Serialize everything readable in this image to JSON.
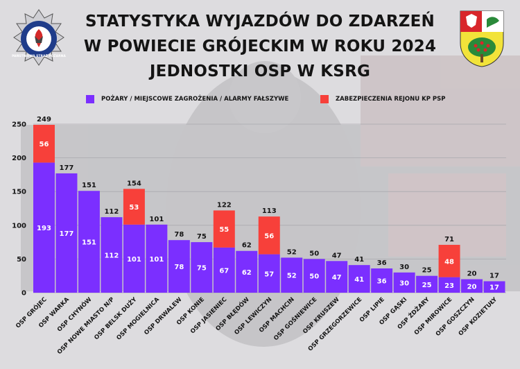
{
  "title": {
    "line1": "STATYSTYKA WYJAZDÓW DO ZDARZEŃ",
    "line2": "W POWIECIE GRÓJECKIM W ROKU 2024",
    "line3": "JEDNOSTKI OSP W KSRG"
  },
  "logos": {
    "left": {
      "icon": "fire-service-emblem-icon",
      "text": "PAŃSTWOWA STRAŻ POŻARNA"
    },
    "right": {
      "icon": "county-coat-of-arms-icon"
    }
  },
  "colors": {
    "primary": "#7b2fff",
    "secondary": "#f7403a",
    "text": "#141414",
    "grid": "#a9a9ae"
  },
  "chart_data": {
    "type": "bar",
    "stacked": true,
    "categories": [
      "OSP GRÓJEC",
      "OSP WARKA",
      "OSP CHYNÓW",
      "OSP NOWE MIASTO N/P",
      "OSP BELSK DUŻY",
      "OSP MOGIELNICA",
      "OSP DRWALEW",
      "OSP KONIE",
      "OSP JASIENIEC",
      "OSP BŁĘDÓW",
      "OSP LEWICZYN",
      "OSP MACHCIN",
      "OSP GOŚNIEWICE",
      "OSP KRUSZEW",
      "OSP GRZEGORZEWICE",
      "OSP LIPIE",
      "OSP GĄSKI",
      "OSP ŻDŻARY",
      "OSP MIROWICE",
      "OSP GOSZCZYN",
      "OSP KOZIETUŁY"
    ],
    "series": [
      {
        "name": "POŻARY / MIEJSCOWE ZAGROŻENIA / ALARMY FAŁSZYWE",
        "color": "#7b2fff",
        "values": [
          193,
          177,
          151,
          112,
          101,
          101,
          78,
          75,
          67,
          62,
          57,
          52,
          50,
          47,
          41,
          36,
          30,
          25,
          23,
          20,
          17
        ]
      },
      {
        "name": "ZABEZPIECZENIA REJONU KP PSP",
        "color": "#f7403a",
        "values": [
          56,
          0,
          0,
          0,
          53,
          0,
          0,
          0,
          55,
          0,
          56,
          0,
          0,
          0,
          0,
          0,
          0,
          0,
          48,
          0,
          0
        ]
      }
    ],
    "totals": [
      249,
      177,
      151,
      112,
      154,
      101,
      78,
      75,
      122,
      62,
      113,
      52,
      50,
      47,
      41,
      36,
      30,
      25,
      71,
      20,
      17
    ],
    "ylim": [
      0,
      250
    ],
    "yticks": [
      0,
      50,
      100,
      150,
      200,
      250
    ],
    "grid": true,
    "legend": "top",
    "xlabel": "",
    "ylabel": ""
  }
}
